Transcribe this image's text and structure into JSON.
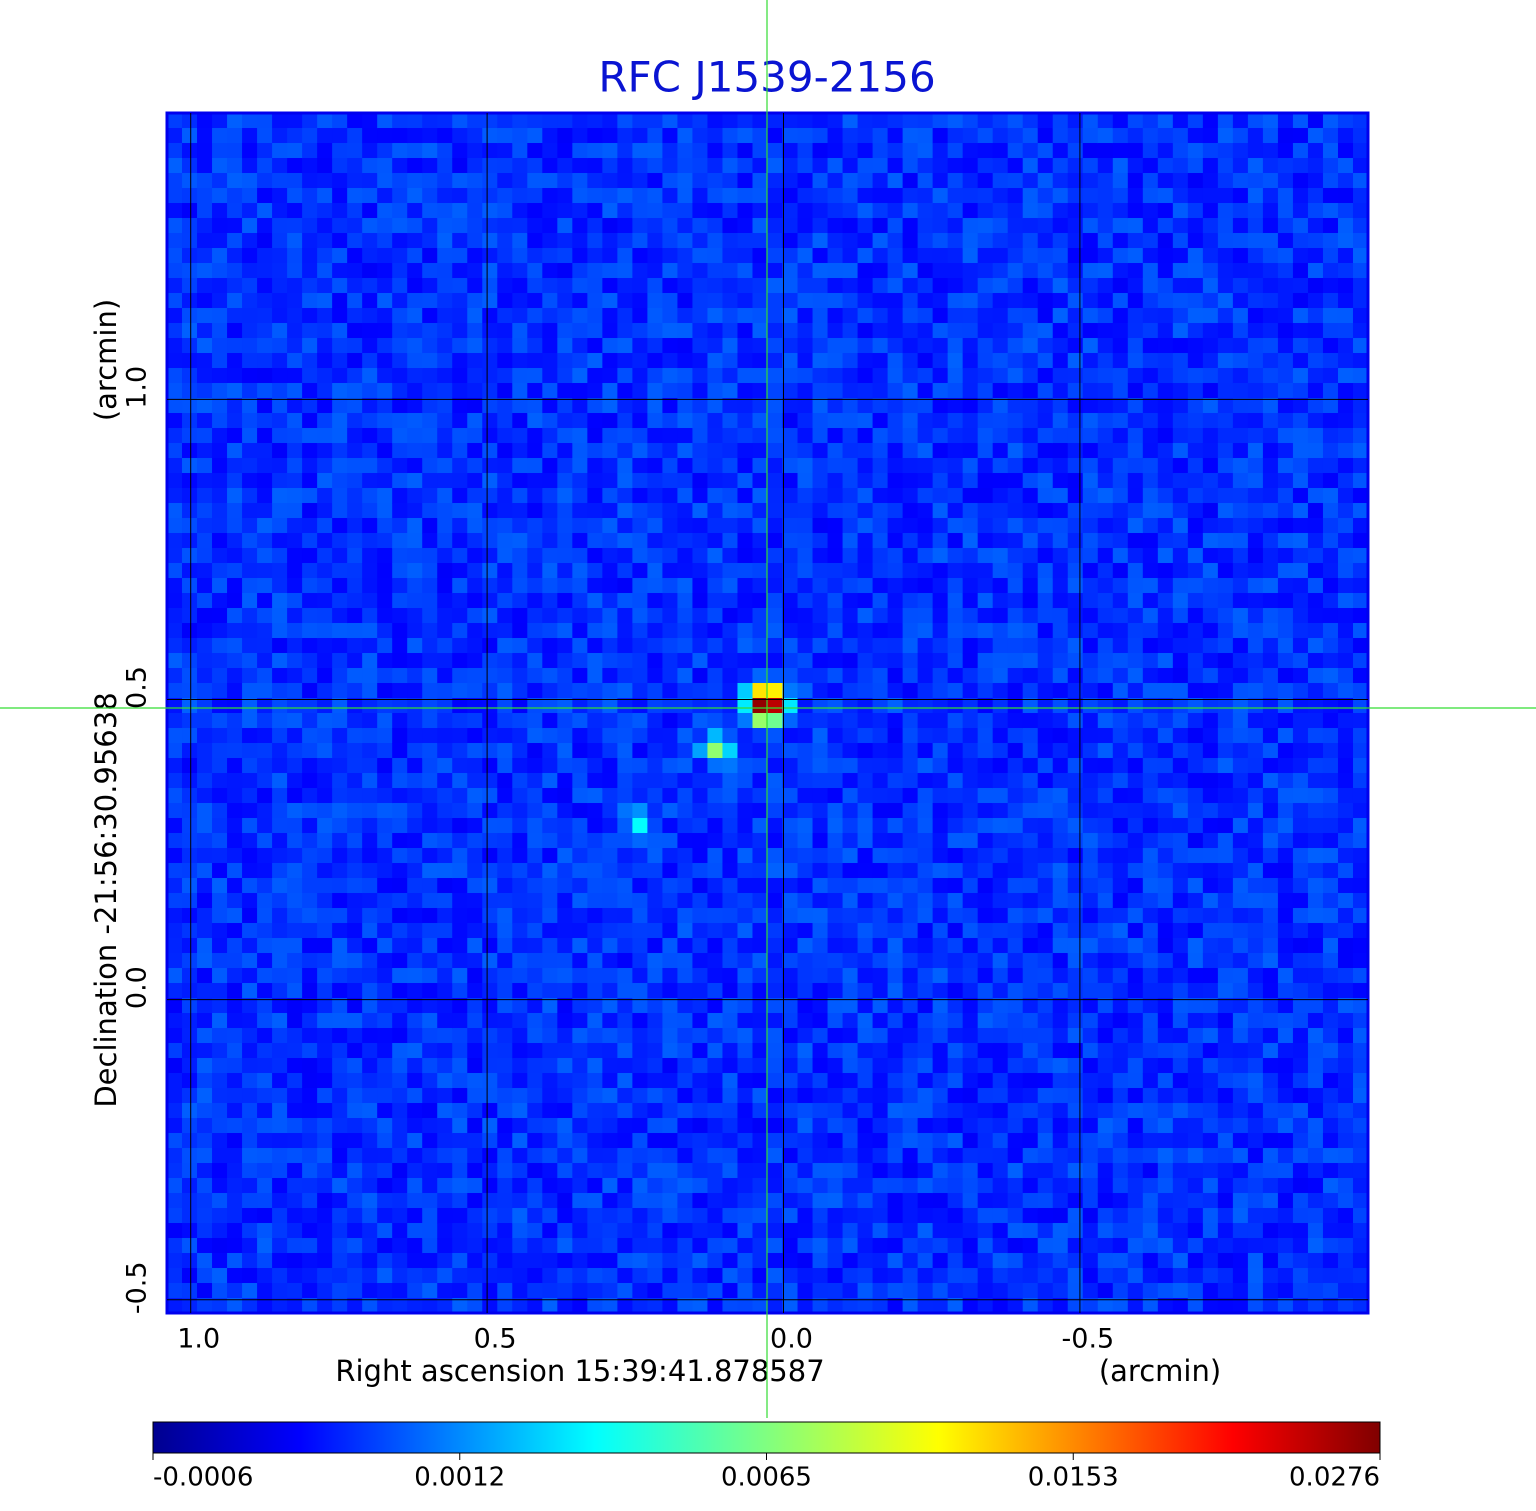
{
  "chart_data": {
    "type": "image",
    "title": "RFC J1539-2156",
    "x_label": "Right ascension  15:39:41.878587",
    "x_unit": "(arcmin)",
    "y_label": "Declination  -21:56:30.95638",
    "y_unit": "(arcmin)",
    "xlim": [
      1.04,
      -0.986
    ],
    "ylim": [
      -0.522,
      1.477
    ],
    "xticks": [
      {
        "value": 1,
        "label": "1.0"
      },
      0.5,
      {
        "value": 0,
        "label": "0.0"
      },
      -0.5
    ],
    "yticks": [
      -0.5,
      {
        "value": 0,
        "label": "0.0"
      },
      0.5,
      {
        "value": 1,
        "label": "1.0"
      }
    ],
    "grid": true,
    "colorbar_ticks": [
      -0.0006,
      0.0012,
      0.0065,
      0.0153,
      0.0276
    ]
  }
}
